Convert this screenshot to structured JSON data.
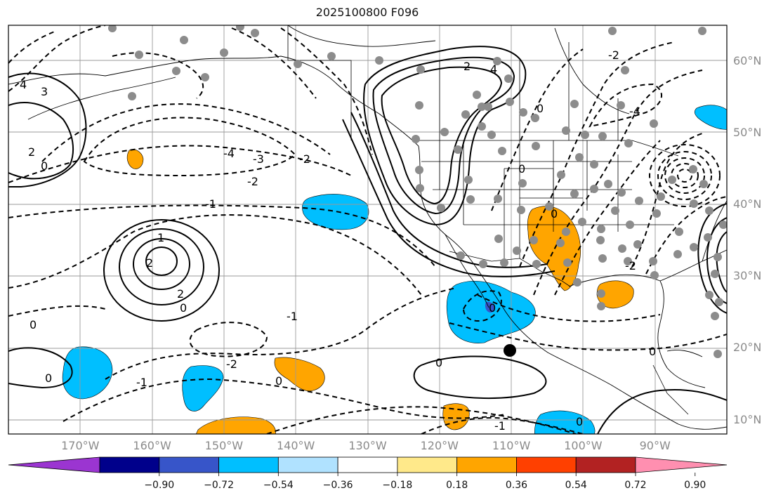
{
  "title": "2025100800 F096",
  "lat_labels": [
    {
      "text": "60°N",
      "lat": 60
    },
    {
      "text": "50°N",
      "lat": 50
    },
    {
      "text": "40°N",
      "lat": 40
    },
    {
      "text": "30°N",
      "lat": 30
    },
    {
      "text": "20°N",
      "lat": 20
    },
    {
      "text": "10°N",
      "lat": 10
    }
  ],
  "lon_labels": [
    {
      "text": "170°W",
      "lon": -170
    },
    {
      "text": "160°W",
      "lon": -160
    },
    {
      "text": "150°W",
      "lon": -150
    },
    {
      "text": "140°W",
      "lon": -140
    },
    {
      "text": "130°W",
      "lon": -130
    },
    {
      "text": "120°W",
      "lon": -120
    },
    {
      "text": "110°W",
      "lon": -110
    },
    {
      "text": "100°W",
      "lon": -100
    },
    {
      "text": "90°W",
      "lon": -90
    }
  ],
  "extent": {
    "lon_min": -180,
    "lon_max": -80,
    "lat_min": 8,
    "lat_max": 65
  },
  "colorbar": {
    "colors": [
      "#9b35d1",
      "#00008b",
      "#3755c9",
      "#00bfff",
      "#b0e2ff",
      "#ffffff",
      "#ffe98a",
      "#ffa500",
      "#ff4000",
      "#b22222",
      "#ff8fb0"
    ],
    "tick_labels": [
      "−0.90",
      "−0.72",
      "−0.54",
      "−0.36",
      "−0.18",
      "0.18",
      "0.36",
      "0.54",
      "0.72",
      "0.90"
    ]
  },
  "contour_labels": [
    "4",
    "3",
    "2",
    "1",
    "0",
    "-1",
    "-2",
    "-3",
    "-4"
  ]
}
